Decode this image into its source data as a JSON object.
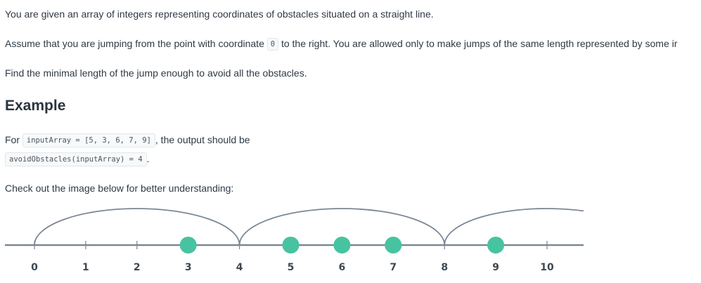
{
  "line1": "You are given an array of integers representing coordinates of obstacles situated on a straight line.",
  "line2": {
    "before": "Assume that you are jumping from the point with coordinate ",
    "code": "0",
    "after": " to the right. You are allowed only to make jumps of the same length represented by some ir"
  },
  "line3": "Find the minimal length of the jump enough to avoid all the obstacles.",
  "heading": "Example",
  "example": {
    "for_label": "For ",
    "input_code": "inputArray = [5, 3, 6, 7, 9]",
    "output_text": ", the output should be",
    "result_code": "avoidObstacles(inputArray) = 4",
    "period": "."
  },
  "check_text": "Check out the image below for better understanding:",
  "illustration": {
    "tick_labels": [
      "0",
      "1",
      "2",
      "3",
      "4",
      "5",
      "6",
      "7",
      "8",
      "9",
      "10"
    ],
    "obstacles": [
      3,
      5,
      6,
      7,
      9
    ],
    "jump_length": 4,
    "colors": {
      "line": "#7b8794",
      "obstacle": "#47c3a1",
      "label": "#3d4852"
    }
  }
}
